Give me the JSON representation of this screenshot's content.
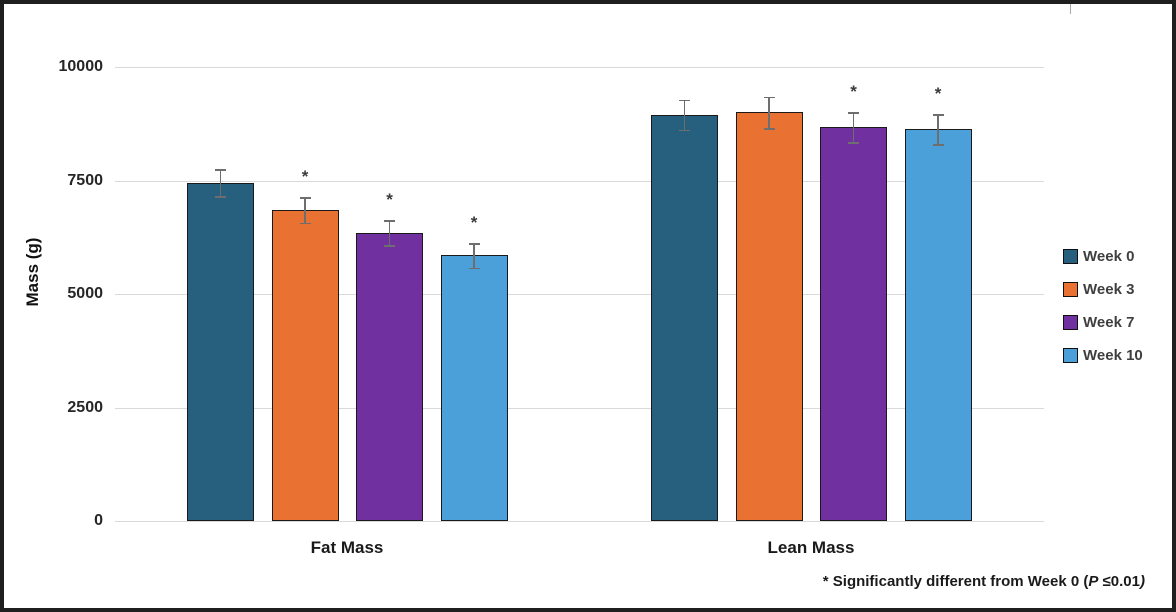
{
  "chart_data": {
    "type": "bar",
    "title": "",
    "xlabel": "",
    "ylabel": "Mass (g)",
    "ylim": [
      0,
      10000
    ],
    "yticks": [
      0,
      2500,
      5000,
      7500,
      10000
    ],
    "grid": "horizontal",
    "legend_position": "right",
    "categories": [
      "Fat Mass",
      "Lean Mass"
    ],
    "series": [
      {
        "name": "Week 0",
        "color": "#27607F",
        "values": [
          7450,
          8950
        ],
        "errors": [
          300,
          330
        ],
        "significant": [
          false,
          false
        ]
      },
      {
        "name": "Week 3",
        "color": "#E97132",
        "values": [
          6850,
          9000
        ],
        "errors": [
          280,
          350
        ],
        "significant": [
          true,
          false
        ]
      },
      {
        "name": "Week 7",
        "color": "#7030A0",
        "values": [
          6350,
          8670
        ],
        "errors": [
          280,
          330
        ],
        "significant": [
          true,
          true
        ]
      },
      {
        "name": "Week 10",
        "color": "#4BA0D9",
        "values": [
          5850,
          8630
        ],
        "errors": [
          270,
          330
        ],
        "significant": [
          true,
          true
        ]
      }
    ],
    "significance_marker": "*",
    "error_bar_color": "#6e6e6e",
    "gridline_color": "#d9d9d9"
  },
  "footnote": {
    "prefix": "* Significantly different from Week 0 (",
    "p_symbol": "P",
    "condition": " ≤0.01",
    "close_paren": ")"
  }
}
